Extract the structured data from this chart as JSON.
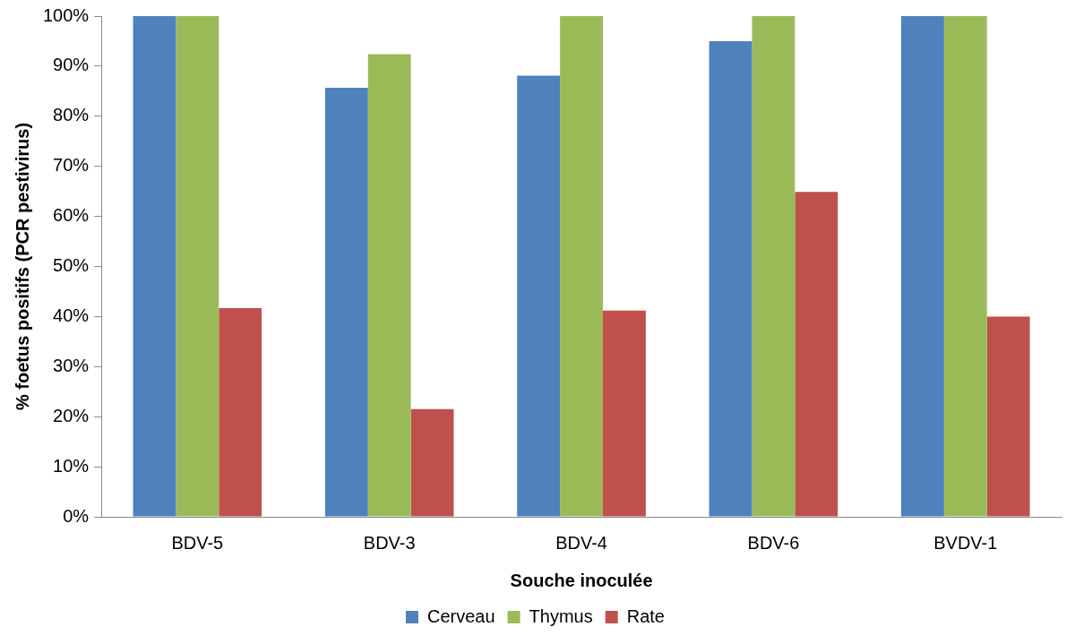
{
  "chart_data": {
    "type": "bar",
    "xlabel": "Souche inoculée",
    "ylabel": "% foetus positifs (PCR pestivirus)",
    "categories": [
      "BDV-5",
      "BDV-3",
      "BDV-4",
      "BDV-6",
      "BVDV-1"
    ],
    "series": [
      {
        "name": "Cerveau",
        "color": "#4f81bd",
        "values": [
          100,
          85.7,
          88.1,
          95,
          100
        ]
      },
      {
        "name": "Thymus",
        "color": "#9bbb59",
        "values": [
          100,
          92.4,
          100,
          100,
          100
        ]
      },
      {
        "name": "Rate",
        "color": "#c0504d",
        "values": [
          41.7,
          21.5,
          41.2,
          64.9,
          40
        ]
      }
    ],
    "ylim": [
      0,
      100
    ],
    "yticks": [
      {
        "value": 0,
        "label": "0%"
      },
      {
        "value": 10,
        "label": "10%"
      },
      {
        "value": 20,
        "label": "20%"
      },
      {
        "value": 30,
        "label": "30%"
      },
      {
        "value": 40,
        "label": "40%"
      },
      {
        "value": 50,
        "label": "50%"
      },
      {
        "value": 60,
        "label": "60%"
      },
      {
        "value": 70,
        "label": "70%"
      },
      {
        "value": 80,
        "label": "80%"
      },
      {
        "value": 90,
        "label": "90%"
      },
      {
        "value": 100,
        "label": "100%"
      }
    ],
    "grid": false,
    "legend": "bottom"
  }
}
